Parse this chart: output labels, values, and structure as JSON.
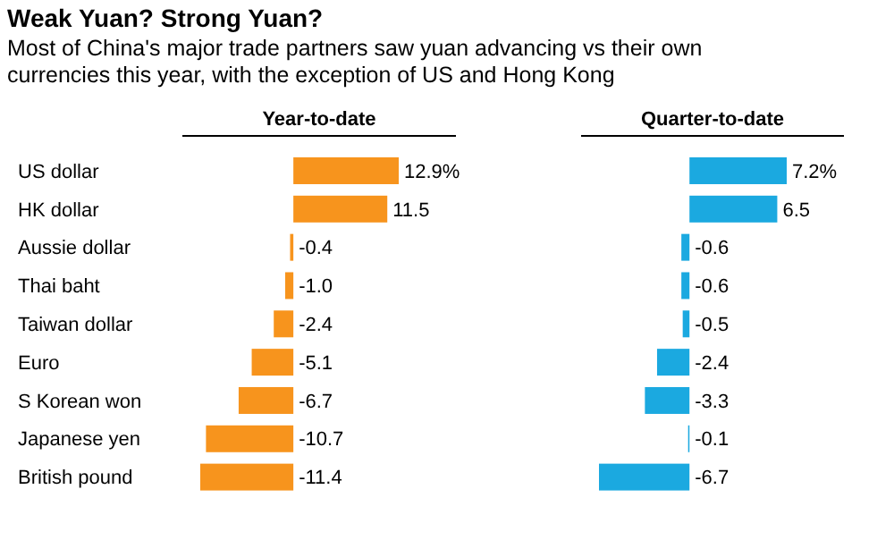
{
  "chart_data": [
    {
      "type": "bar",
      "orientation": "horizontal",
      "title": "Weak Yuan? Strong Yuan?",
      "subtitle": "Most of China's major trade partners saw yuan advancing vs their own currencies this year, with the exception of US and Hong Kong",
      "xlabel": "Year-to-date",
      "categories": [
        "US dollar",
        "HK dollar",
        "Aussie dollar",
        "Thai baht",
        "Taiwan dollar",
        "Euro",
        "S Korean won",
        "Japanese yen",
        "British pound"
      ],
      "values": [
        12.9,
        11.5,
        -0.4,
        -1.0,
        -2.4,
        -5.1,
        -6.7,
        -10.7,
        -11.4
      ],
      "value_labels": [
        "12.9%",
        "11.5",
        "-0.4",
        "-1.0",
        "-2.4",
        "-5.1",
        "-6.7",
        "-10.7",
        "-11.4"
      ],
      "color": "#f7941d"
    },
    {
      "type": "bar",
      "orientation": "horizontal",
      "xlabel": "Quarter-to-date",
      "categories": [
        null,
        null,
        null,
        null,
        null,
        null,
        null,
        null,
        null
      ],
      "values": [
        7.2,
        6.5,
        -0.6,
        -0.6,
        -0.5,
        -2.4,
        -3.3,
        -0.1,
        -6.7
      ],
      "value_labels": [
        "7.2%",
        "6.5",
        "-0.6",
        "-0.6",
        "-0.5",
        "-2.4",
        "-3.3",
        "-0.1",
        "-6.7"
      ],
      "color": "#1ba9e0"
    }
  ]
}
